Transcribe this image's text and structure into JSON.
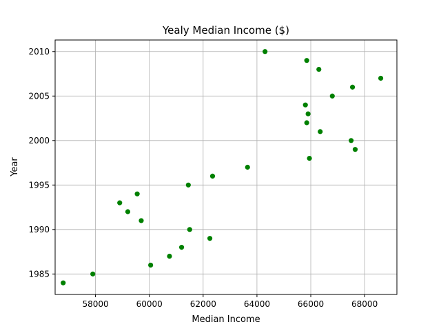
{
  "chart_data": {
    "type": "scatter",
    "title": "Yealy Median Income ($)",
    "xlabel": "Median Income",
    "ylabel": "Year",
    "xlim": [
      56500,
      69200
    ],
    "ylim": [
      1982.7,
      2011.3
    ],
    "xticks": [
      58000,
      60000,
      62000,
      64000,
      66000,
      68000
    ],
    "yticks": [
      1985,
      1990,
      1995,
      2000,
      2005,
      2010
    ],
    "grid": true,
    "marker_color": "#008000",
    "points": [
      {
        "x": 56800,
        "y": 1984
      },
      {
        "x": 57900,
        "y": 1985
      },
      {
        "x": 60050,
        "y": 1986
      },
      {
        "x": 60750,
        "y": 1987
      },
      {
        "x": 61200,
        "y": 1988
      },
      {
        "x": 62250,
        "y": 1989
      },
      {
        "x": 61500,
        "y": 1990
      },
      {
        "x": 59700,
        "y": 1991
      },
      {
        "x": 59200,
        "y": 1992
      },
      {
        "x": 58900,
        "y": 1993
      },
      {
        "x": 59550,
        "y": 1994
      },
      {
        "x": 61450,
        "y": 1995
      },
      {
        "x": 62350,
        "y": 1996
      },
      {
        "x": 63650,
        "y": 1997
      },
      {
        "x": 65950,
        "y": 1998
      },
      {
        "x": 67650,
        "y": 1999
      },
      {
        "x": 67500,
        "y": 2000
      },
      {
        "x": 66350,
        "y": 2001
      },
      {
        "x": 65850,
        "y": 2002
      },
      {
        "x": 65900,
        "y": 2003
      },
      {
        "x": 65800,
        "y": 2004
      },
      {
        "x": 66800,
        "y": 2005
      },
      {
        "x": 67550,
        "y": 2006
      },
      {
        "x": 68600,
        "y": 2007
      },
      {
        "x": 66300,
        "y": 2008
      },
      {
        "x": 65850,
        "y": 2009
      },
      {
        "x": 64300,
        "y": 2010
      }
    ]
  }
}
